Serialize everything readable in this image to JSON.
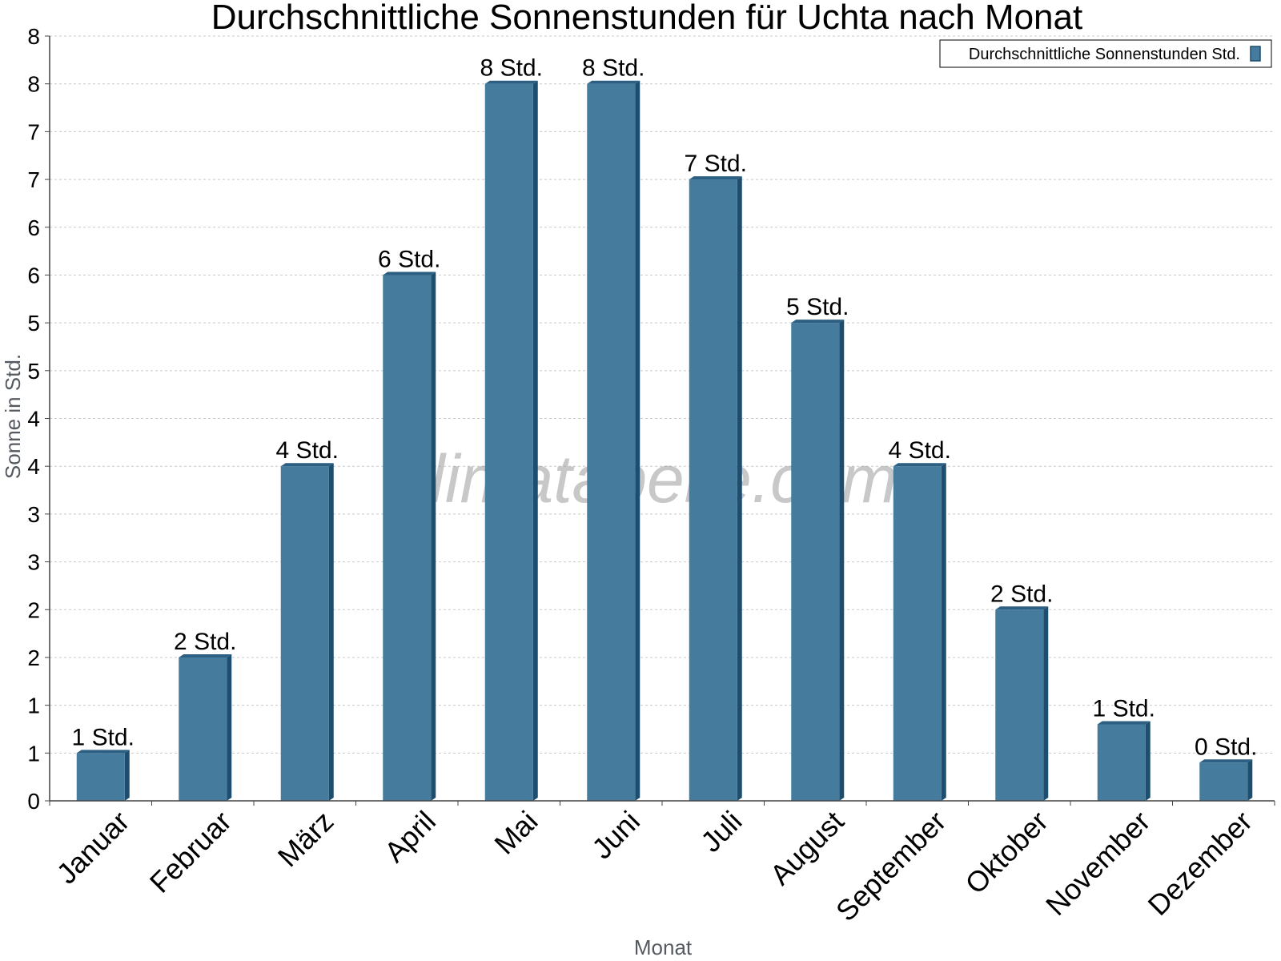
{
  "watermark": "klimatabelle.com",
  "colors": {
    "bar_front": "#457b9d",
    "bar_side": "#1d4e6f",
    "bar_top": "#2c5f82",
    "grid": "#c8c8c8",
    "axis": "#444444"
  },
  "chart_data": {
    "type": "bar",
    "title": "Durchschnittliche Sonnenstunden für Uchta nach Monat",
    "xlabel": "Monat",
    "ylabel": "Sonne in Std.",
    "ylim": [
      0,
      8
    ],
    "y_tick_values": [
      0,
      0.5,
      1,
      1.5,
      2,
      2.5,
      3,
      3.5,
      4,
      4.5,
      5,
      5.5,
      6,
      6.5,
      7,
      7.5,
      8
    ],
    "y_tick_labels": [
      "0",
      "1",
      "1",
      "2",
      "2",
      "3",
      "3",
      "4",
      "4",
      "5",
      "5",
      "6",
      "6",
      "7",
      "7",
      "8",
      "8"
    ],
    "grid": true,
    "legend_position": "top-right",
    "categories": [
      "Januar",
      "Februar",
      "März",
      "April",
      "Mai",
      "Juni",
      "Juli",
      "August",
      "September",
      "Oktober",
      "November",
      "Dezember"
    ],
    "series": [
      {
        "name": "Durchschnittliche Sonnenstunden Std.",
        "values": [
          0.5,
          1.5,
          3.5,
          5.5,
          7.5,
          7.5,
          6.5,
          5.0,
          3.5,
          2.0,
          0.8,
          0.4
        ],
        "labels": [
          "1 Std.",
          "2 Std.",
          "4 Std.",
          "6 Std.",
          "8 Std.",
          "8 Std.",
          "7 Std.",
          "5 Std.",
          "4 Std.",
          "2 Std.",
          "1 Std.",
          "0 Std."
        ]
      }
    ]
  }
}
